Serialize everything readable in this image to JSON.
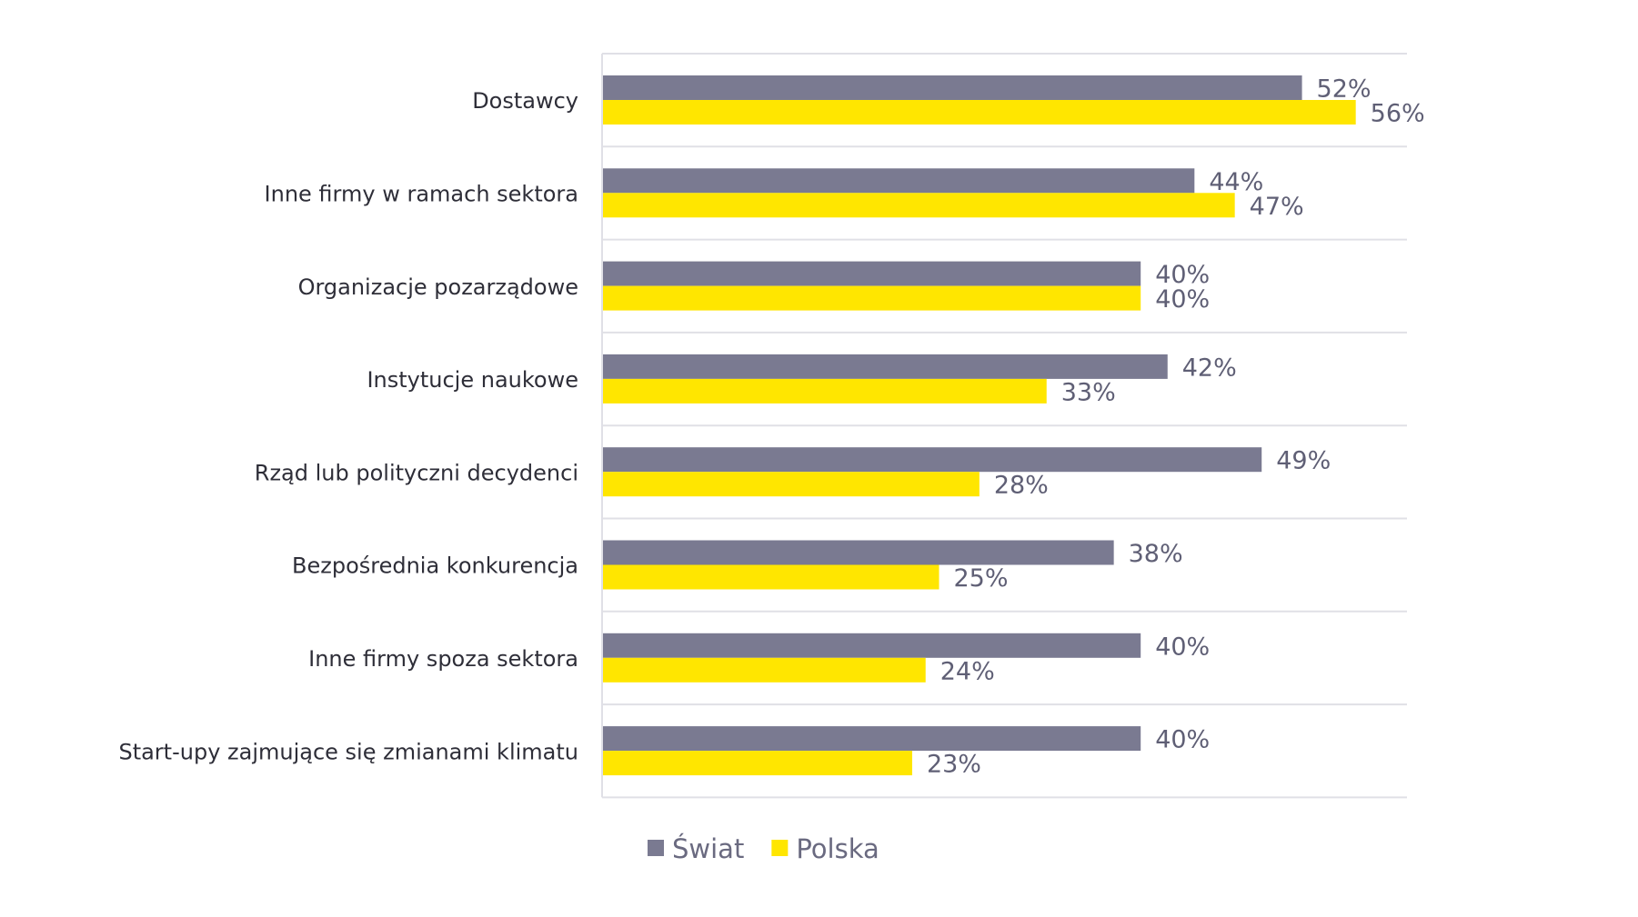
{
  "chart_data": {
    "type": "bar",
    "orientation": "horizontal",
    "categories": [
      "Dostawcy",
      "Inne firmy w ramach sektora",
      "Organizacje pozarządowe",
      "Instytucje naukowe",
      "Rząd lub polityczni decydenci",
      "Bezpośrednia konkurencja",
      "Inne firmy spoza sektora",
      "Start-upy zajmujące się zmianami klimatu"
    ],
    "series": [
      {
        "name": "Świat",
        "color": "#7a7a91",
        "values": [
          52,
          44,
          40,
          42,
          49,
          38,
          40,
          40
        ],
        "labels": [
          "52%",
          "44%",
          "40%",
          "42%",
          "49%",
          "38%",
          "40%",
          "40%"
        ]
      },
      {
        "name": "Polska",
        "color": "#ffe600",
        "values": [
          56,
          47,
          40,
          33,
          28,
          25,
          24,
          23
        ],
        "labels": [
          "56%",
          "47%",
          "40%",
          "33%",
          "28%",
          "25%",
          "24%",
          "23%"
        ]
      }
    ],
    "xlim": [
      0,
      60
    ],
    "grid": true,
    "legend_position": "bottom"
  }
}
